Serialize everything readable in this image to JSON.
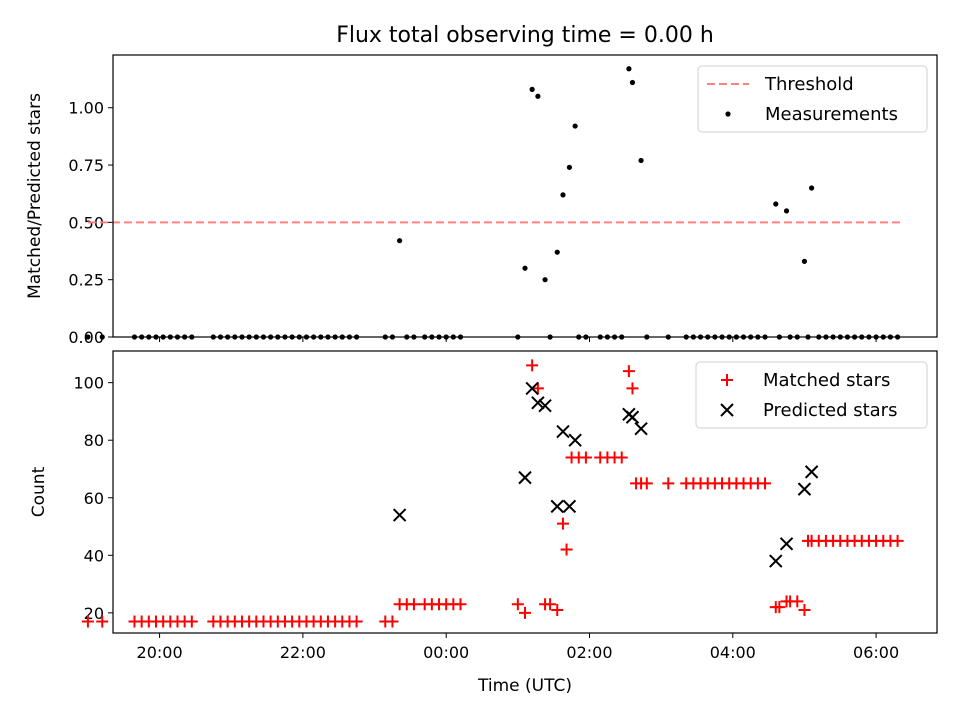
{
  "chart_data": [
    {
      "type": "scatter",
      "title": "Flux total observing time = 0.00 h",
      "xlabel": "",
      "ylabel": "Matched/Predicted stars",
      "xlim": [
        -4.65,
        6.85
      ],
      "ylim": [
        0,
        1.23
      ],
      "yticks": [
        0.0,
        0.25,
        0.5,
        0.75,
        1.0
      ],
      "ytick_labels": [
        "0.00",
        "0.25",
        "0.50",
        "0.75",
        "1.00"
      ],
      "xticks": [
        -4,
        -2,
        0,
        2,
        4,
        6
      ],
      "xtick_labels": [
        "20:00",
        "22:00",
        "00:00",
        "02:00",
        "04:00",
        "06:00"
      ],
      "show_xtick_labels": false,
      "grid": false,
      "legend_position": "top-right",
      "legend": [
        "Threshold",
        "Measurements"
      ],
      "colors": {
        "threshold": "#ff8080",
        "measurements": "#000000"
      },
      "threshold": {
        "name": "Threshold",
        "y": 0.5,
        "x": [
          -5.0,
          6.35
        ]
      },
      "series": [
        {
          "name": "Measurements",
          "x": [
            -5.0,
            -4.8,
            -4.35,
            -4.25,
            -4.15,
            -4.05,
            -3.95,
            -3.85,
            -3.75,
            -3.65,
            -3.55,
            -3.25,
            -3.15,
            -3.05,
            -2.95,
            -2.85,
            -2.75,
            -2.65,
            -2.55,
            -2.45,
            -2.35,
            -2.25,
            -2.15,
            -2.05,
            -1.95,
            -1.85,
            -1.75,
            -1.65,
            -1.55,
            -1.45,
            -1.35,
            -1.25,
            -0.85,
            -0.75,
            -0.65,
            -0.55,
            -0.45,
            -0.3,
            -0.2,
            -0.1,
            0.0,
            0.1,
            0.2,
            1.0,
            1.1,
            1.2,
            1.28,
            1.38,
            1.45,
            1.55,
            1.63,
            1.72,
            1.8,
            1.85,
            1.95,
            2.15,
            2.25,
            2.35,
            2.45,
            2.55,
            2.6,
            2.72,
            2.8,
            3.1,
            3.35,
            3.45,
            3.55,
            3.65,
            3.75,
            3.85,
            3.95,
            4.05,
            4.15,
            4.25,
            4.35,
            4.45,
            4.6,
            4.65,
            4.75,
            4.8,
            4.9,
            5.0,
            5.05,
            5.1,
            5.2,
            5.3,
            5.4,
            5.5,
            5.6,
            5.7,
            5.8,
            5.9,
            6.0,
            6.1,
            6.2,
            6.3
          ],
          "y": [
            0.0,
            0.0,
            0.0,
            0.0,
            0.0,
            0.0,
            0.0,
            0.0,
            0.0,
            0.0,
            0.0,
            0.0,
            0.0,
            0.0,
            0.0,
            0.0,
            0.0,
            0.0,
            0.0,
            0.0,
            0.0,
            0.0,
            0.0,
            0.0,
            0.0,
            0.0,
            0.0,
            0.0,
            0.0,
            0.0,
            0.0,
            0.0,
            0.0,
            0.0,
            0.42,
            0.0,
            0.0,
            0.0,
            0.0,
            0.0,
            0.0,
            0.0,
            0.0,
            0.0,
            0.3,
            1.08,
            1.05,
            0.25,
            0.0,
            0.37,
            0.62,
            0.74,
            0.92,
            0.0,
            0.0,
            0.0,
            0.0,
            0.0,
            0.0,
            1.17,
            1.11,
            0.77,
            0.0,
            0.0,
            0.0,
            0.0,
            0.0,
            0.0,
            0.0,
            0.0,
            0.0,
            0.0,
            0.0,
            0.0,
            0.0,
            0.0,
            0.58,
            0.0,
            0.55,
            0.0,
            0.0,
            0.33,
            0.0,
            0.65,
            0.0,
            0.0,
            0.0,
            0.0,
            0.0,
            0.0,
            0.0,
            0.0,
            0.0,
            0.0,
            0.0,
            0.0
          ]
        }
      ]
    },
    {
      "type": "scatter",
      "title": "",
      "xlabel": "Time (UTC)",
      "ylabel": "Count",
      "xlim": [
        -4.65,
        6.85
      ],
      "ylim": [
        13,
        111
      ],
      "yticks": [
        20,
        40,
        60,
        80,
        100
      ],
      "ytick_labels": [
        "20",
        "40",
        "60",
        "80",
        "100"
      ],
      "xticks": [
        -4,
        -2,
        0,
        2,
        4,
        6
      ],
      "xtick_labels": [
        "20:00",
        "22:00",
        "00:00",
        "02:00",
        "04:00",
        "06:00"
      ],
      "show_xtick_labels": true,
      "grid": false,
      "legend_position": "top-right",
      "legend": [
        "Matched stars",
        "Predicted stars"
      ],
      "colors": {
        "matched": "#ff0000",
        "predicted": "#000000"
      },
      "series": [
        {
          "name": "Matched stars",
          "marker": "plus",
          "x": [
            -5.0,
            -4.8,
            -4.35,
            -4.25,
            -4.15,
            -4.05,
            -3.95,
            -3.85,
            -3.75,
            -3.65,
            -3.55,
            -3.25,
            -3.15,
            -3.05,
            -2.95,
            -2.85,
            -2.75,
            -2.65,
            -2.55,
            -2.45,
            -2.35,
            -2.25,
            -2.15,
            -2.05,
            -1.95,
            -1.85,
            -1.75,
            -1.65,
            -1.55,
            -1.45,
            -1.35,
            -1.25,
            -0.85,
            -0.75,
            -0.65,
            -0.55,
            -0.45,
            -0.3,
            -0.2,
            -0.1,
            0.0,
            0.1,
            0.2,
            1.0,
            1.1,
            1.2,
            1.28,
            1.38,
            1.45,
            1.55,
            1.63,
            1.68,
            1.75,
            1.85,
            1.95,
            2.15,
            2.25,
            2.35,
            2.45,
            2.55,
            2.6,
            2.65,
            2.72,
            2.8,
            3.1,
            3.35,
            3.45,
            3.55,
            3.65,
            3.75,
            3.85,
            3.95,
            4.05,
            4.15,
            4.25,
            4.35,
            4.45,
            4.6,
            4.65,
            4.75,
            4.8,
            4.9,
            5.0,
            5.05,
            5.1,
            5.2,
            5.3,
            5.4,
            5.5,
            5.6,
            5.7,
            5.8,
            5.9,
            6.0,
            6.1,
            6.2,
            6.3
          ],
          "y": [
            17,
            17,
            17,
            17,
            17,
            17,
            17,
            17,
            17,
            17,
            17,
            17,
            17,
            17,
            17,
            17,
            17,
            17,
            17,
            17,
            17,
            17,
            17,
            17,
            17,
            17,
            17,
            17,
            17,
            17,
            17,
            17,
            17,
            17,
            23,
            23,
            23,
            23,
            23,
            23,
            23,
            23,
            23,
            23,
            20,
            106,
            98,
            23,
            23,
            21,
            51,
            42,
            74,
            74,
            74,
            74,
            74,
            74,
            74,
            104,
            98,
            65,
            65,
            65,
            65,
            65,
            65,
            65,
            65,
            65,
            65,
            65,
            65,
            65,
            65,
            65,
            65,
            22,
            22,
            24,
            24,
            24,
            21,
            45,
            45,
            45,
            45,
            45,
            45,
            45,
            45,
            45,
            45,
            45,
            45,
            45,
            45
          ]
        },
        {
          "name": "Predicted stars",
          "marker": "x",
          "x": [
            -0.65,
            1.1,
            1.2,
            1.28,
            1.38,
            1.55,
            1.63,
            1.72,
            1.8,
            2.55,
            2.6,
            2.72,
            4.6,
            4.75,
            5.0,
            5.1
          ],
          "y": [
            54,
            67,
            98,
            93,
            92,
            57,
            83,
            57,
            80,
            89,
            88,
            84,
            38,
            44,
            63,
            69
          ]
        }
      ]
    }
  ]
}
